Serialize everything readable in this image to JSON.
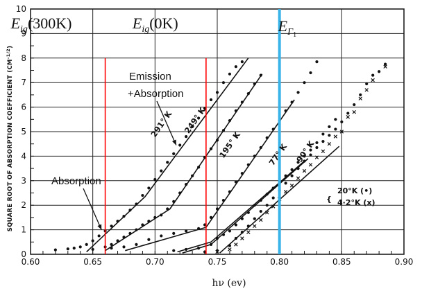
{
  "chart_data": {
    "type": "scatter",
    "xlabel": "hν (ev)",
    "ylabel": "SQUARE ROOT OF ABSORPTION COEFFICIENT (CM^-1/2)",
    "ylabel_main": "SQUARE ROOT OF ABSORPTION COEFFICIENT",
    "ylabel_unit": "(CM",
    "ylabel_unit_exp": "-1/2",
    "ylabel_unit_close": ")",
    "xlim": [
      0.6,
      0.9
    ],
    "ylim": [
      0,
      10
    ],
    "x_ticks": [
      "0.60",
      "0.65",
      "0.70",
      "0.75",
      "0.80",
      "0.85",
      "0.90"
    ],
    "x_tick_values": [
      0.6,
      0.65,
      0.7,
      0.75,
      0.8,
      0.85,
      0.9
    ],
    "y_ticks": [
      "0",
      "1",
      "2",
      "3",
      "4",
      "5",
      "6",
      "7",
      "8",
      "9",
      "10"
    ],
    "y_tick_values": [
      0,
      1,
      2,
      3,
      4,
      5,
      6,
      7,
      8,
      9,
      10
    ],
    "grid": true,
    "series": [
      {
        "name": "291°K",
        "label": "291° K",
        "label_x": 0.7,
        "label_y": 4.75,
        "points": [
          [
            0.62,
            0.18
          ],
          [
            0.63,
            0.22
          ],
          [
            0.635,
            0.25
          ],
          [
            0.64,
            0.3
          ],
          [
            0.645,
            0.4
          ],
          [
            0.65,
            0.55
          ],
          [
            0.655,
            0.75
          ],
          [
            0.66,
            0.95
          ],
          [
            0.665,
            1.15
          ],
          [
            0.67,
            1.35
          ],
          [
            0.675,
            1.55
          ],
          [
            0.68,
            1.8
          ],
          [
            0.685,
            2.05
          ],
          [
            0.69,
            2.4
          ],
          [
            0.695,
            2.7
          ],
          [
            0.7,
            3.05
          ],
          [
            0.705,
            3.4
          ],
          [
            0.71,
            3.75
          ],
          [
            0.715,
            4.1
          ],
          [
            0.72,
            4.45
          ],
          [
            0.725,
            4.8
          ],
          [
            0.73,
            5.2
          ],
          [
            0.735,
            5.55
          ],
          [
            0.74,
            5.95
          ],
          [
            0.745,
            6.3
          ],
          [
            0.75,
            6.6
          ],
          [
            0.755,
            7.0
          ],
          [
            0.76,
            7.35
          ],
          [
            0.765,
            7.65
          ],
          [
            0.77,
            7.85
          ]
        ],
        "fit": [
          [
            0.645,
            0.1
          ],
          [
            0.692,
            2.35
          ],
          [
            0.775,
            8.0
          ]
        ]
      },
      {
        "name": "249°K",
        "label": "249° K",
        "label_x": 0.727,
        "label_y": 4.9,
        "points": [
          [
            0.65,
            0.2
          ],
          [
            0.66,
            0.3
          ],
          [
            0.665,
            0.4
          ],
          [
            0.67,
            0.55
          ],
          [
            0.675,
            0.7
          ],
          [
            0.68,
            0.85
          ],
          [
            0.685,
            1.0
          ],
          [
            0.69,
            1.2
          ],
          [
            0.695,
            1.35
          ],
          [
            0.7,
            1.5
          ],
          [
            0.705,
            1.6
          ],
          [
            0.71,
            1.85
          ],
          [
            0.715,
            2.15
          ],
          [
            0.72,
            2.5
          ],
          [
            0.725,
            2.85
          ],
          [
            0.73,
            3.2
          ],
          [
            0.735,
            3.55
          ],
          [
            0.74,
            3.95
          ],
          [
            0.745,
            4.3
          ],
          [
            0.75,
            4.65
          ],
          [
            0.755,
            5.05
          ],
          [
            0.76,
            5.45
          ],
          [
            0.765,
            5.85
          ],
          [
            0.77,
            6.2
          ],
          [
            0.775,
            6.55
          ],
          [
            0.78,
            6.95
          ],
          [
            0.785,
            7.3
          ]
        ],
        "fit": [
          [
            0.66,
            0.15
          ],
          [
            0.712,
            1.85
          ],
          [
            0.786,
            7.35
          ]
        ]
      },
      {
        "name": "195°K",
        "label": "195° K",
        "label_x": 0.755,
        "label_y": 3.9,
        "points": [
          [
            0.665,
            0.25
          ],
          [
            0.675,
            0.3
          ],
          [
            0.685,
            0.4
          ],
          [
            0.695,
            0.6
          ],
          [
            0.705,
            0.75
          ],
          [
            0.715,
            0.85
          ],
          [
            0.725,
            0.95
          ],
          [
            0.735,
            1.05
          ],
          [
            0.74,
            1.2
          ],
          [
            0.745,
            1.5
          ],
          [
            0.75,
            1.85
          ],
          [
            0.755,
            2.2
          ],
          [
            0.76,
            2.55
          ],
          [
            0.765,
            2.95
          ],
          [
            0.77,
            3.3
          ],
          [
            0.775,
            3.65
          ],
          [
            0.78,
            4.0
          ],
          [
            0.785,
            4.35
          ],
          [
            0.79,
            4.75
          ],
          [
            0.795,
            5.1
          ],
          [
            0.8,
            5.45
          ],
          [
            0.805,
            5.85
          ],
          [
            0.81,
            6.2
          ],
          [
            0.815,
            6.6
          ],
          [
            0.82,
            7.0
          ],
          [
            0.825,
            7.4
          ],
          [
            0.83,
            7.85
          ]
        ],
        "fit": [
          [
            0.676,
            0.15
          ],
          [
            0.741,
            1.1
          ],
          [
            0.812,
            6.3
          ]
        ]
      },
      {
        "name": "77°K",
        "label": "77° K",
        "label_x": 0.795,
        "label_y": 3.6,
        "points": [
          [
            0.715,
            0.15
          ],
          [
            0.725,
            0.2
          ],
          [
            0.735,
            0.25
          ],
          [
            0.745,
            0.4
          ],
          [
            0.75,
            0.65
          ],
          [
            0.755,
            0.8
          ],
          [
            0.76,
            0.95
          ],
          [
            0.765,
            1.2
          ],
          [
            0.77,
            1.45
          ],
          [
            0.775,
            1.7
          ],
          [
            0.78,
            2.0
          ],
          [
            0.785,
            2.2
          ],
          [
            0.79,
            2.45
          ],
          [
            0.795,
            2.7
          ],
          [
            0.8,
            2.95
          ],
          [
            0.805,
            3.2
          ],
          [
            0.81,
            3.45
          ],
          [
            0.815,
            3.75
          ],
          [
            0.82,
            4.0
          ],
          [
            0.825,
            4.25
          ],
          [
            0.83,
            4.55
          ],
          [
            0.835,
            4.9
          ],
          [
            0.84,
            5.2
          ],
          [
            0.845,
            5.5
          ]
        ],
        "fit": [
          [
            0.718,
            0.1
          ],
          [
            0.745,
            0.5
          ],
          [
            0.82,
            3.8
          ]
        ]
      },
      {
        "name": "90°K",
        "label": "90° K",
        "label_x": 0.817,
        "label_y": 3.72,
        "points": [],
        "fit": [
          [
            0.722,
            0.05
          ],
          [
            0.745,
            0.4
          ],
          [
            0.823,
            3.9
          ]
        ]
      },
      {
        "name": "20°K",
        "label": "20°K (•)",
        "marker": "dot",
        "points": [
          [
            0.74,
            0.1
          ],
          [
            0.75,
            0.15
          ],
          [
            0.76,
            0.35
          ],
          [
            0.765,
            0.65
          ],
          [
            0.77,
            0.9
          ],
          [
            0.775,
            1.15
          ],
          [
            0.78,
            1.45
          ],
          [
            0.785,
            1.75
          ],
          [
            0.79,
            2.0
          ],
          [
            0.795,
            2.3
          ],
          [
            0.8,
            2.6
          ],
          [
            0.805,
            2.9
          ],
          [
            0.81,
            3.2
          ],
          [
            0.815,
            3.5
          ],
          [
            0.82,
            3.8
          ],
          [
            0.825,
            4.05
          ],
          [
            0.83,
            4.35
          ],
          [
            0.835,
            4.6
          ],
          [
            0.84,
            4.85
          ],
          [
            0.845,
            5.1
          ],
          [
            0.85,
            5.4
          ],
          [
            0.855,
            5.75
          ],
          [
            0.86,
            6.1
          ],
          [
            0.865,
            6.5
          ],
          [
            0.87,
            6.95
          ],
          [
            0.875,
            7.3
          ],
          [
            0.88,
            7.45
          ],
          [
            0.885,
            7.75
          ]
        ],
        "fit": [
          [
            0.752,
            0.05
          ],
          [
            0.848,
            4.4
          ]
        ]
      },
      {
        "name": "4.2°K",
        "label": "4·2°K (x)",
        "marker": "cross",
        "points": [
          [
            0.75,
            0.1
          ],
          [
            0.76,
            0.2
          ],
          [
            0.765,
            0.4
          ],
          [
            0.77,
            0.65
          ],
          [
            0.775,
            0.9
          ],
          [
            0.78,
            1.15
          ],
          [
            0.785,
            1.4
          ],
          [
            0.79,
            1.7
          ],
          [
            0.795,
            1.95
          ],
          [
            0.8,
            2.25
          ],
          [
            0.805,
            2.55
          ],
          [
            0.81,
            2.8
          ],
          [
            0.815,
            3.1
          ],
          [
            0.82,
            3.4
          ],
          [
            0.825,
            3.65
          ],
          [
            0.83,
            3.95
          ],
          [
            0.835,
            4.2
          ],
          [
            0.84,
            4.5
          ],
          [
            0.845,
            4.8
          ],
          [
            0.85,
            5.0
          ],
          [
            0.855,
            5.6
          ],
          [
            0.86,
            5.8
          ],
          [
            0.865,
            6.35
          ],
          [
            0.87,
            6.7
          ],
          [
            0.875,
            7.1
          ],
          [
            0.885,
            7.65
          ]
        ]
      }
    ],
    "vertical_markers": [
      {
        "name": "E_ig(300K)",
        "x": 0.66,
        "ymax": 8.0,
        "color": "#ff0000",
        "label_main": "E",
        "label_sub": "ig",
        "label_rest": "(300K)"
      },
      {
        "name": "E_ig(0K)",
        "x": 0.741,
        "ymax": 8.0,
        "color": "#ff0000",
        "label_main": "E",
        "label_sub": "ig",
        "label_rest": "(0K)"
      },
      {
        "name": "E_Gamma1",
        "x": 0.8,
        "ymax": 10.0,
        "color": "#3ab3e8",
        "label_main": "E",
        "label_sub": "Γ",
        "label_subsub": "1"
      }
    ],
    "annotations": [
      {
        "name": "emission-absorption",
        "text_line1": "Emission",
        "text_line2": "+Absorption",
        "arrow_to": [
          0.717,
          4.45
        ]
      },
      {
        "name": "absorption",
        "text": "Absorption",
        "arrow_to": [
          0.657,
          1.0
        ]
      }
    ],
    "legend": {
      "bracket": "{",
      "items": [
        "20°K (•)",
        "4·2°K (x)"
      ]
    }
  }
}
